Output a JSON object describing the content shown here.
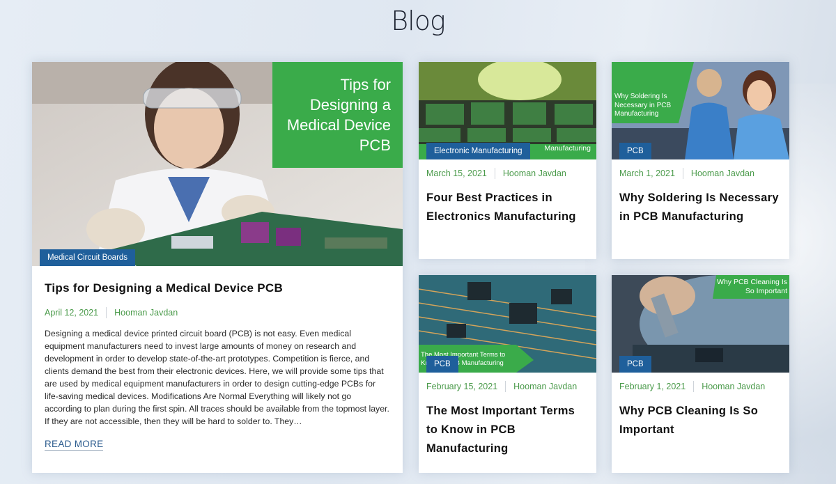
{
  "page": {
    "title": "Blog"
  },
  "featured": {
    "image_overlay": "Tips for Designing a Medical Device PCB",
    "category": "Medical Circuit Boards",
    "title": "Tips for Designing a Medical Device PCB",
    "date": "April 12, 2021",
    "author": "Hooman Javdan",
    "excerpt": "Designing a medical device printed circuit board (PCB) is not easy. Even medical equipment manufacturers need to invest large amounts of money on research and development in order to develop state-of-the-art prototypes.  Competition is fierce, and clients demand the best from their electronic devices. Here, we will provide some tips that are used by medical equipment manufacturers in order to design cutting-edge PCBs for life-saving medical devices. Modifications Are Normal Everything will likely not go according to plan during the first spin. All traces should be available from the topmost layer. If they are not accessible, then they will be hard to solder to. They…",
    "read_more": "READ MORE"
  },
  "posts": [
    {
      "image_overlay": "Manufacturing",
      "category": "Electronic Manufacturing",
      "date": "March 15, 2021",
      "author": "Hooman Javdan",
      "title": "Four Best Practices in Electronics Manufacturing"
    },
    {
      "image_overlay": "Why Soldering Is Necessary in PCB Manufacturing",
      "category": "PCB",
      "date": "March 1, 2021",
      "author": "Hooman Javdan",
      "title": "Why Soldering Is Necessary in PCB Manufacturing"
    },
    {
      "image_overlay": "The Most Important Terms to Know in PCB Manufacturing",
      "category": "PCB",
      "date": "February 15, 2021",
      "author": "Hooman Javdan",
      "title": "The Most Important Terms to Know in PCB Manufacturing"
    },
    {
      "image_overlay": "Why PCB Cleaning Is So Important",
      "category": "PCB",
      "date": "February 1, 2021",
      "author": "Hooman Javdan",
      "title": "Why PCB Cleaning Is So Important"
    }
  ],
  "colors": {
    "accent_green": "#3aab4a",
    "tag_blue": "#1f5f9b",
    "meta_green": "#4a9a4a",
    "link_blue": "#2a5a8d"
  }
}
